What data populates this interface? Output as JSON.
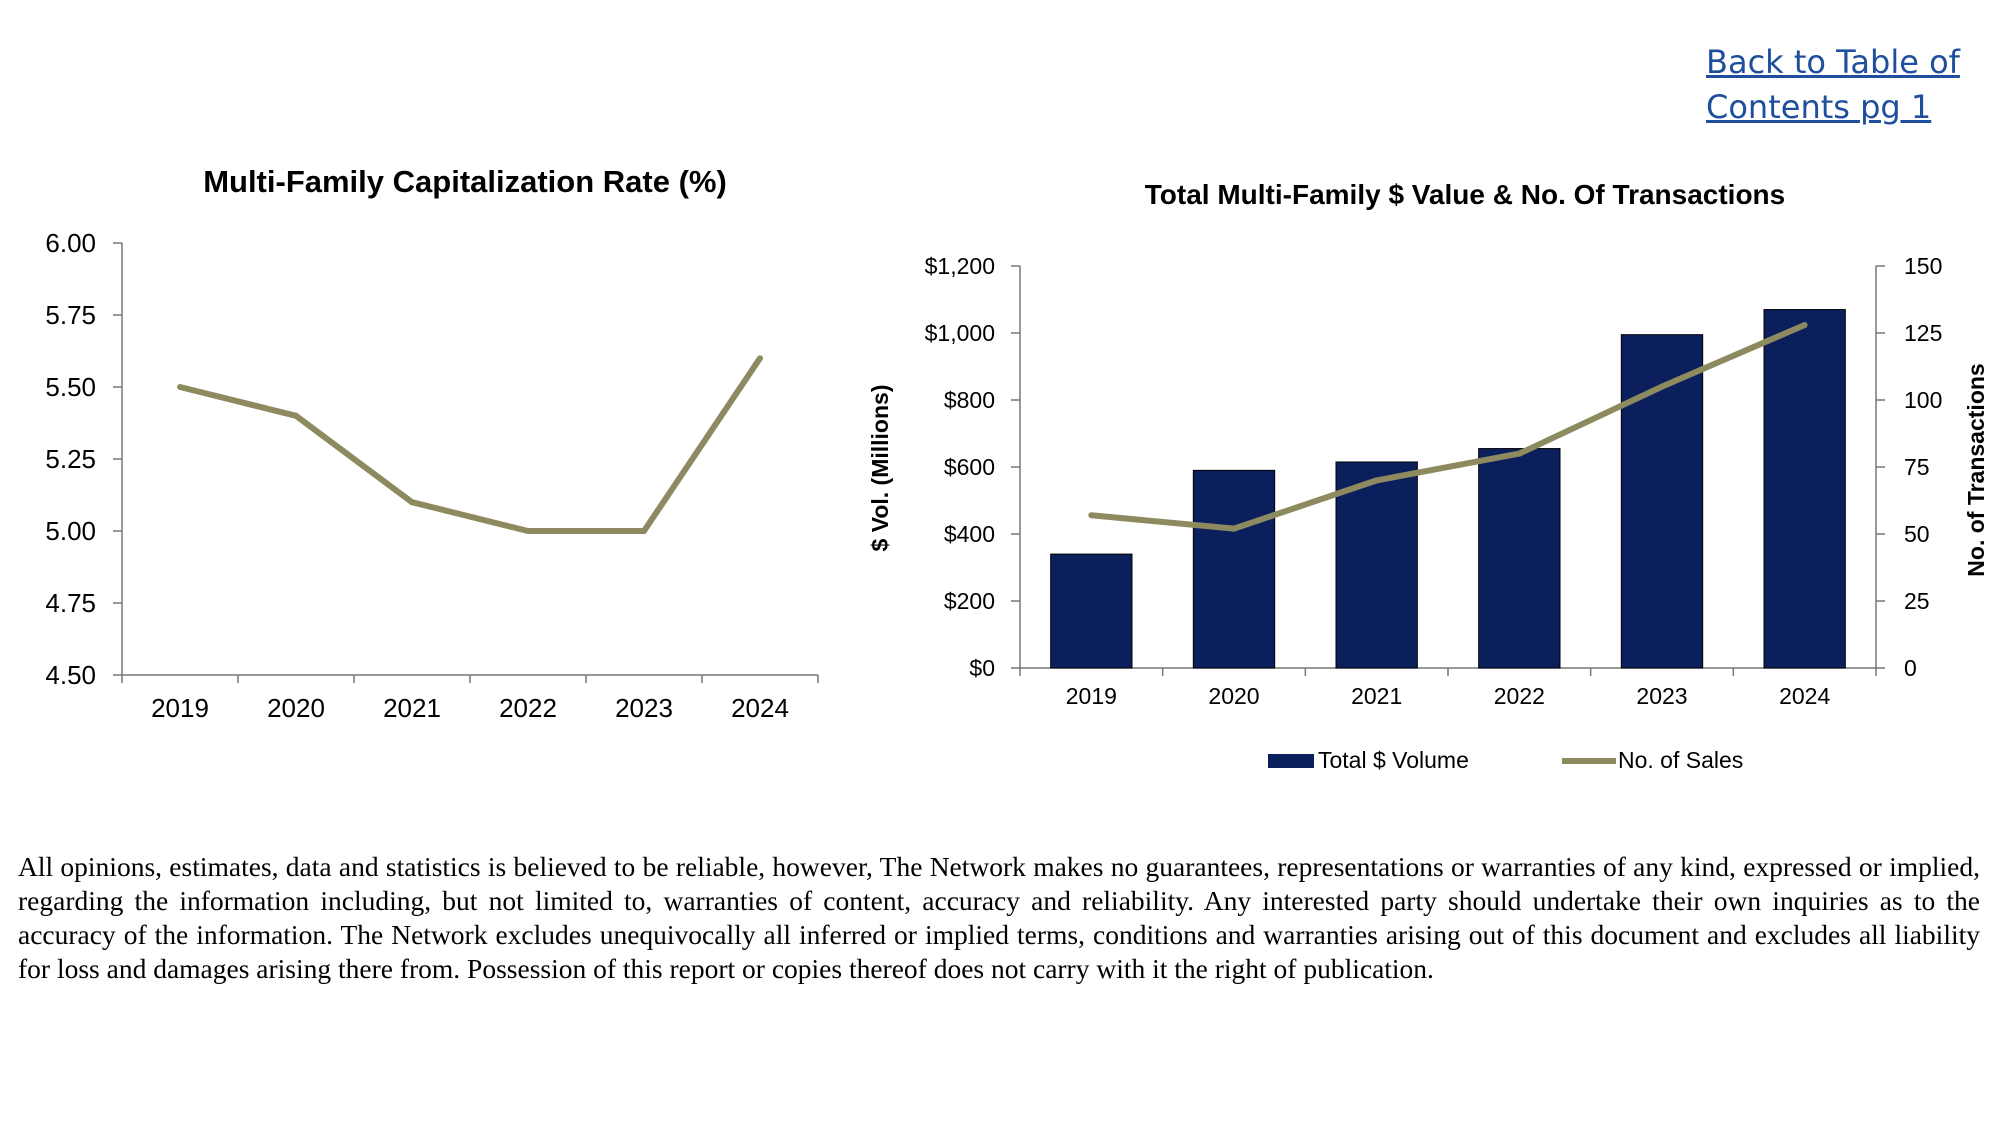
{
  "header": {
    "toc_link_line1": "Back to Table of",
    "toc_link_line2": "Contents pg 1"
  },
  "chart_data": [
    {
      "type": "line",
      "title": "Multi-Family Capitalization Rate (%)",
      "categories": [
        "2019",
        "2020",
        "2021",
        "2022",
        "2023",
        "2024"
      ],
      "values": [
        5.5,
        5.4,
        5.1,
        5.0,
        5.0,
        5.6
      ],
      "ylim": [
        4.5,
        6.0
      ],
      "yticks": [
        "4.50",
        "4.75",
        "5.00",
        "5.25",
        "5.50",
        "5.75",
        "6.00"
      ],
      "line_color": "#8e8a60",
      "grid": false
    },
    {
      "type": "bar+line",
      "title": "Total Multi-Family $ Value & No. Of Transactions",
      "categories": [
        "2019",
        "2020",
        "2021",
        "2022",
        "2023",
        "2024"
      ],
      "series": [
        {
          "name": "Total $ Volume",
          "type": "bar",
          "axis": "left",
          "values": [
            340,
            590,
            615,
            655,
            995,
            1070
          ],
          "color": "#0b1f5c"
        },
        {
          "name": "No. of Sales",
          "type": "line",
          "axis": "right",
          "values": [
            57,
            52,
            70,
            80,
            105,
            128
          ],
          "color": "#8e8a60"
        }
      ],
      "ylabel_left": "$ Vol. (Millions)",
      "ylabel_right": "No. of Transactions",
      "ylim_left": [
        0,
        1200
      ],
      "ylim_right": [
        0,
        150
      ],
      "yticks_left": [
        "$0",
        "$200",
        "$400",
        "$600",
        "$800",
        "$1,000",
        "$1,200"
      ],
      "yticks_right": [
        "0",
        "25",
        "50",
        "75",
        "100",
        "125",
        "150"
      ],
      "legend_position": "bottom",
      "grid": false
    }
  ],
  "footer": {
    "disclaimer": "All opinions, estimates, data and statistics is believed to be reliable, however, The Network makes no guarantees, representations or warranties of any kind, expressed or implied, regarding the information including, but not limited to, warranties of content, accuracy and reliability. Any interested party should undertake their own inquiries as to the accuracy of the information. The Network excludes unequivocally all inferred or implied terms, conditions and warranties arising out of this document and excludes all liability for loss and damages arising there from.  Possession of this report or copies thereof does not carry with it the right of publication."
  }
}
